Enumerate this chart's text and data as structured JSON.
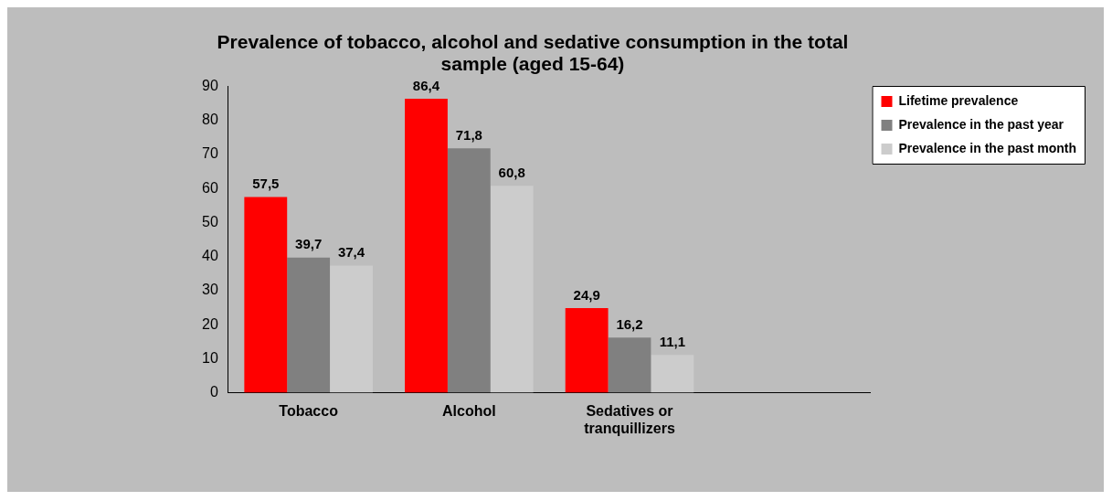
{
  "chart_data": {
    "type": "bar",
    "title": "Prevalence of tobacco, alcohol and sedative consumption in the total sample (aged 15-64)",
    "categories": [
      "Tobacco",
      "Alcohol",
      "Sedatives or tranquillizers",
      null
    ],
    "series": [
      {
        "name": "Lifetime prevalence",
        "color": "#ff0000",
        "values": [
          57.5,
          86.4,
          24.9,
          null
        ],
        "value_labels": [
          "57,5",
          "86,4",
          "24,9",
          null
        ]
      },
      {
        "name": "Prevalence in the past year",
        "color": "#808080",
        "values": [
          39.7,
          71.8,
          16.2,
          null
        ],
        "value_labels": [
          "39,7",
          "71,8",
          "16,2",
          null
        ]
      },
      {
        "name": "Prevalence in the past month",
        "color": "#cccccc",
        "values": [
          37.4,
          60.8,
          11.1,
          null
        ],
        "value_labels": [
          "37,4",
          "60,8",
          "11,1",
          null
        ]
      }
    ],
    "ylim": [
      0,
      90
    ],
    "yticks": [
      0,
      10,
      20,
      30,
      40,
      50,
      60,
      70,
      80,
      90
    ],
    "grid": false,
    "legend": "top right"
  }
}
